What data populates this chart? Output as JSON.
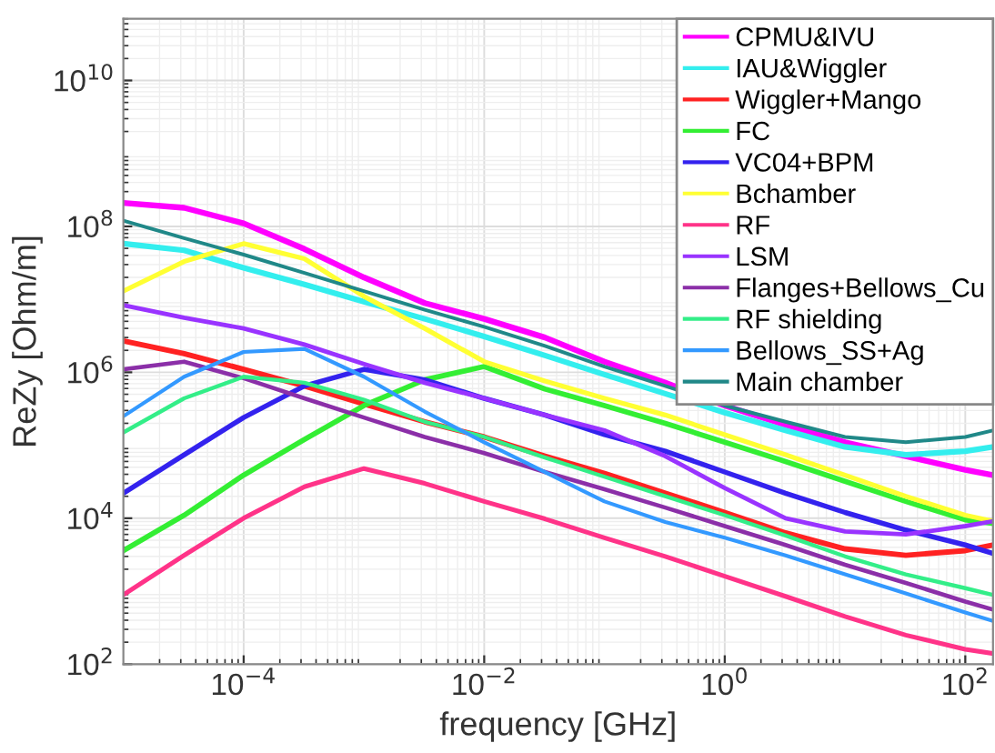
{
  "chart_data": {
    "type": "line",
    "xlabel": "frequency [GHz]",
    "ylabel": "ReZy [Ohm/m]",
    "log": "xy",
    "grid": true,
    "legend": "top right",
    "marker": "none",
    "line_style": "solid",
    "xlim": [
      1e-05,
      170
    ],
    "ylim": [
      100,
      70000000000.0
    ],
    "xticks": [
      {
        "value": 0.0001,
        "label": "10$^{−4}$"
      },
      {
        "value": 0.01,
        "label": "10$^{−2}$"
      },
      {
        "value": 1,
        "label": "10$^{0}$"
      },
      {
        "value": 100,
        "label": "10$^{2}$"
      }
    ],
    "yticks": [
      {
        "value": 100,
        "label": "10$^{2}$"
      },
      {
        "value": 10000,
        "label": "10$^{4}$"
      },
      {
        "value": 1000000,
        "label": "10$^{6}$"
      },
      {
        "value": 100000000,
        "label": "10$^{8}$"
      },
      {
        "value": 10000000000,
        "label": "10$^{10}$"
      }
    ],
    "x": [
      1e-05,
      3.2e-05,
      0.0001,
      0.00032,
      0.001,
      0.0032,
      0.01,
      0.032,
      0.1,
      0.32,
      1,
      3.2,
      10,
      32,
      100,
      170
    ],
    "series": [
      {
        "name": "CPMU&IVU",
        "color": "#ff00ff",
        "values": [
          210000000.0,
          180000000.0,
          110000000.0,
          49000000.0,
          20000000.0,
          8900000.0,
          5400000.0,
          3000000.0,
          1400000.0,
          720000.0,
          350000.0,
          190000.0,
          110000.0,
          71000.0,
          46000.0,
          39000.0
        ]
      },
      {
        "name": "IAU&Wiggler",
        "color": "#33eeee",
        "values": [
          58000000.0,
          47000000.0,
          27000000.0,
          16000000.0,
          9300000.0,
          5400000.0,
          3100000.0,
          1700000.0,
          930000.0,
          510000.0,
          280000.0,
          160000.0,
          95000.0,
          74000.0,
          83000.0,
          95000.0
        ]
      },
      {
        "name": "Wiggler+Mango",
        "color": "#ff2222",
        "values": [
          2700000.0,
          1800000.0,
          1100000.0,
          650000.0,
          370000.0,
          210000.0,
          130000.0,
          71000.0,
          41000.0,
          22000.0,
          12000.0,
          6300.0,
          3800.0,
          3100.0,
          3600.0,
          4300.0
        ]
      },
      {
        "name": "FC",
        "color": "#33ee33",
        "values": [
          3600.0,
          11000.0,
          39000.0,
          120000.0,
          350000.0,
          790000.0,
          1200000.0,
          590000.0,
          350000.0,
          200000.0,
          110000.0,
          60000.0,
          32000.0,
          17000.0,
          9500.0,
          8500.0
        ]
      },
      {
        "name": "VC04+BPM",
        "color": "#3322ee",
        "values": [
          22000.0,
          74000.0,
          240000.0,
          650000.0,
          1100000.0,
          790000.0,
          440000.0,
          260000.0,
          140000.0,
          83000.0,
          43000.0,
          22000.0,
          12000.0,
          6900.0,
          4300.0,
          3300.0
        ]
      },
      {
        "name": "Bchamber",
        "color": "#ffff33",
        "values": [
          13000000.0,
          33000000.0,
          58000000.0,
          36000000.0,
          11000000.0,
          4000000.0,
          1400000.0,
          760000.0,
          440000.0,
          260000.0,
          140000.0,
          74000.0,
          39000.0,
          20000.0,
          11000.0,
          9100.0
        ]
      },
      {
        "name": "RF",
        "color": "#ff3388",
        "values": [
          890.0,
          3100.0,
          10000.0,
          27000.0,
          48000.0,
          30000.0,
          17000.0,
          9800.0,
          5400.0,
          3000.0,
          1600.0,
          850.0,
          450.0,
          250.0,
          160.0,
          140.0
        ]
      },
      {
        "name": "LSM",
        "color": "#9933ff",
        "values": [
          8300000.0,
          5600000.0,
          4000000.0,
          2400000.0,
          1300000.0,
          720000.0,
          440000.0,
          260000.0,
          160000.0,
          71000.0,
          26000.0,
          10000.0,
          6600.0,
          6000.0,
          7800.0,
          9100.0
        ]
      },
      {
        "name": "Flanges+Bellows_Cu",
        "color": "#8b2fa8",
        "values": [
          1100000.0,
          1400000.0,
          830000.0,
          440000.0,
          240000.0,
          130000.0,
          78000.0,
          43000.0,
          25000.0,
          14000.0,
          7800.0,
          4300.0,
          2300.0,
          1300.0,
          720.0,
          560.0
        ]
      },
      {
        "name": "RF shielding",
        "color": "#33ee88",
        "values": [
          150000.0,
          440000.0,
          870000.0,
          720000.0,
          420000.0,
          210000.0,
          130000.0,
          68000.0,
          37000.0,
          20000.0,
          11000.0,
          5800.0,
          3000.0,
          1700.0,
          1100.0,
          890.0
        ]
      },
      {
        "name": "Bellows_SS+Ag",
        "color": "#3399ff",
        "values": [
          250000.0,
          870000.0,
          1900000.0,
          2100000.0,
          870000.0,
          290000.0,
          110000.0,
          43000.0,
          17000.0,
          8900.0,
          5400.0,
          3100.0,
          1700.0,
          930.0,
          510.0,
          390.0
        ]
      },
      {
        "name": "Main chamber",
        "color": "#208888",
        "values": [
          120000000.0,
          69000000.0,
          41000000.0,
          23000000.0,
          13000000.0,
          7200000.0,
          4200000.0,
          2300000.0,
          1200000.0,
          650000.0,
          350000.0,
          210000.0,
          130000.0,
          110000.0,
          130000.0,
          160000.0
        ]
      }
    ]
  }
}
